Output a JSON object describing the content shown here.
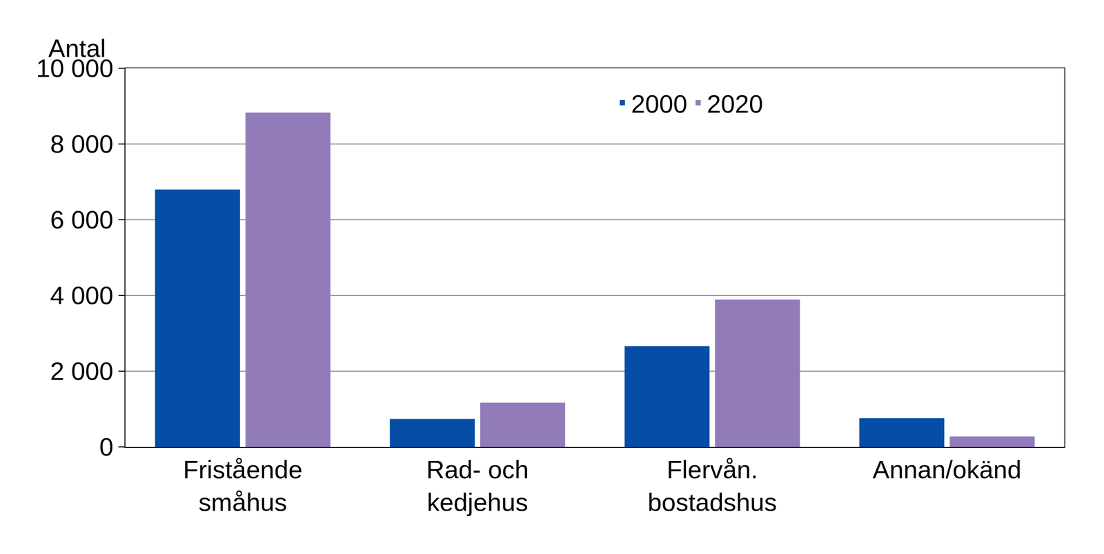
{
  "chart_data": {
    "type": "bar",
    "ylabel": "Antal",
    "categories": [
      "Fristående\nsmåhus",
      "Rad- och\nkedjehus",
      "Flervån.\nbostadshus",
      "Annan/okänd"
    ],
    "series": [
      {
        "name": "2000",
        "color": "#054da6",
        "values": [
          6800,
          740,
          2660,
          760
        ]
      },
      {
        "name": "2020",
        "color": "#917cb9",
        "values": [
          8830,
          1170,
          3890,
          280
        ]
      }
    ],
    "ylim": [
      0,
      10000
    ],
    "yticks": [
      0,
      {
        "value": 2000,
        "label": "2 000"
      },
      {
        "value": 4000,
        "label": "4 000"
      },
      {
        "value": 6000,
        "label": "6 000"
      },
      {
        "value": 8000,
        "label": "8 000"
      },
      {
        "value": 10000,
        "label": "10 000"
      }
    ],
    "grid": true,
    "legend": "top"
  }
}
